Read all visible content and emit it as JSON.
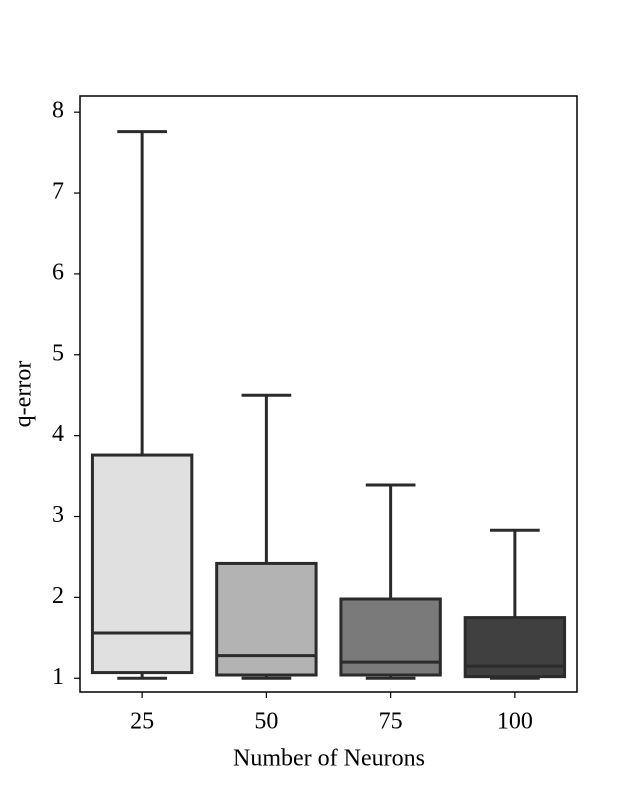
{
  "chart_data": {
    "type": "box",
    "x_label": "Number of Neurons",
    "y_label": "q-error",
    "categories": [
      "25",
      "50",
      "75",
      "100"
    ],
    "boxes": [
      {
        "min": 1.0,
        "q1": 1.07,
        "median": 1.56,
        "q3": 3.76,
        "max": 7.76
      },
      {
        "min": 1.0,
        "q1": 1.04,
        "median": 1.28,
        "q3": 2.42,
        "max": 4.5
      },
      {
        "min": 1.0,
        "q1": 1.04,
        "median": 1.2,
        "q3": 1.98,
        "max": 3.39
      },
      {
        "min": 1.0,
        "q1": 1.02,
        "median": 1.15,
        "q3": 1.75,
        "max": 2.83
      }
    ],
    "colors": [
      "#e0e0e0",
      "#b3b3b3",
      "#7a7a7a",
      "#404040"
    ],
    "line_color": "#2b2b2b",
    "ylim": [
      0.83,
      8.2
    ],
    "yticks": [
      1,
      2,
      3,
      4,
      5,
      6,
      7,
      8
    ],
    "grid": false
  }
}
